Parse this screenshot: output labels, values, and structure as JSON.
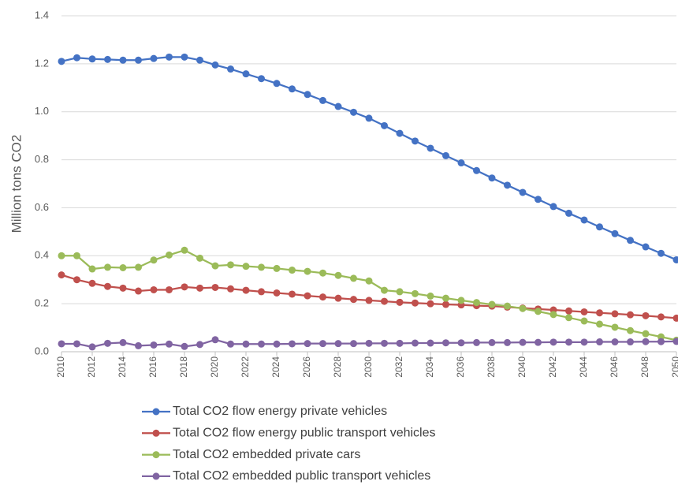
{
  "chart_data": {
    "type": "line",
    "y_label": "Million tons CO2",
    "x": [
      2010,
      2011,
      2012,
      2013,
      2014,
      2015,
      2016,
      2017,
      2018,
      2019,
      2020,
      2021,
      2022,
      2023,
      2024,
      2025,
      2026,
      2027,
      2028,
      2029,
      2030,
      2031,
      2032,
      2033,
      2034,
      2035,
      2036,
      2037,
      2038,
      2039,
      2040,
      2041,
      2042,
      2043,
      2044,
      2045,
      2046,
      2047,
      2048,
      2049,
      2050
    ],
    "xlim": [
      2010,
      2050
    ],
    "xticks": [
      2010,
      2012,
      2014,
      2016,
      2018,
      2020,
      2022,
      2024,
      2026,
      2028,
      2030,
      2032,
      2034,
      2036,
      2038,
      2040,
      2042,
      2044,
      2046,
      2048,
      2050
    ],
    "ylim": [
      0,
      1.4
    ],
    "yticks": [
      {
        "value": 0,
        "label": "0.0"
      },
      {
        "value": 0.2,
        "label": "0.2"
      },
      {
        "value": 0.4,
        "label": "0.4"
      },
      {
        "value": 0.6,
        "label": "0.6"
      },
      {
        "value": 0.8,
        "label": "0.8"
      },
      {
        "value": 1,
        "label": "1.0"
      },
      {
        "value": 1.2,
        "label": "1.2"
      },
      {
        "value": 1.4,
        "label": "1.4"
      }
    ],
    "grid": true,
    "legend": "bottom",
    "series": [
      {
        "name": "Total CO2 flow energy private vehicles",
        "color": "#4472c4",
        "values": [
          1.21,
          1.225,
          1.22,
          1.218,
          1.215,
          1.215,
          1.222,
          1.228,
          1.228,
          1.215,
          1.195,
          1.178,
          1.158,
          1.138,
          1.118,
          1.095,
          1.072,
          1.047,
          1.022,
          0.998,
          0.973,
          0.942,
          0.91,
          0.878,
          0.848,
          0.817,
          0.787,
          0.755,
          0.724,
          0.694,
          0.664,
          0.635,
          0.605,
          0.577,
          0.549,
          0.52,
          0.492,
          0.464,
          0.437,
          0.41,
          0.383
        ]
      },
      {
        "name": "Total CO2 flow energy public transport vehicles",
        "color": "#c0504d",
        "values": [
          0.32,
          0.3,
          0.285,
          0.272,
          0.265,
          0.253,
          0.258,
          0.258,
          0.27,
          0.265,
          0.268,
          0.262,
          0.256,
          0.25,
          0.245,
          0.24,
          0.233,
          0.228,
          0.223,
          0.218,
          0.214,
          0.21,
          0.206,
          0.203,
          0.2,
          0.197,
          0.195,
          0.192,
          0.19,
          0.186,
          0.182,
          0.178,
          0.174,
          0.17,
          0.166,
          0.162,
          0.158,
          0.154,
          0.15,
          0.145,
          0.14
        ]
      },
      {
        "name": "Total CO2 embedded private cars",
        "color": "#9bbb59",
        "values": [
          0.4,
          0.4,
          0.345,
          0.352,
          0.35,
          0.352,
          0.382,
          0.403,
          0.423,
          0.39,
          0.358,
          0.362,
          0.356,
          0.352,
          0.347,
          0.34,
          0.335,
          0.328,
          0.318,
          0.306,
          0.295,
          0.256,
          0.25,
          0.242,
          0.232,
          0.223,
          0.214,
          0.205,
          0.197,
          0.19,
          0.18,
          0.168,
          0.155,
          0.142,
          0.128,
          0.115,
          0.102,
          0.088,
          0.075,
          0.062,
          0.048
        ]
      },
      {
        "name": "Total CO2 embedded public transport vehicles",
        "color": "#8064a2",
        "values": [
          0.033,
          0.033,
          0.02,
          0.035,
          0.038,
          0.025,
          0.028,
          0.032,
          0.022,
          0.03,
          0.05,
          0.032,
          0.032,
          0.032,
          0.032,
          0.033,
          0.034,
          0.034,
          0.034,
          0.034,
          0.035,
          0.035,
          0.035,
          0.036,
          0.036,
          0.037,
          0.037,
          0.038,
          0.038,
          0.038,
          0.039,
          0.039,
          0.04,
          0.04,
          0.04,
          0.041,
          0.041,
          0.041,
          0.042,
          0.042,
          0.043
        ]
      }
    ]
  }
}
